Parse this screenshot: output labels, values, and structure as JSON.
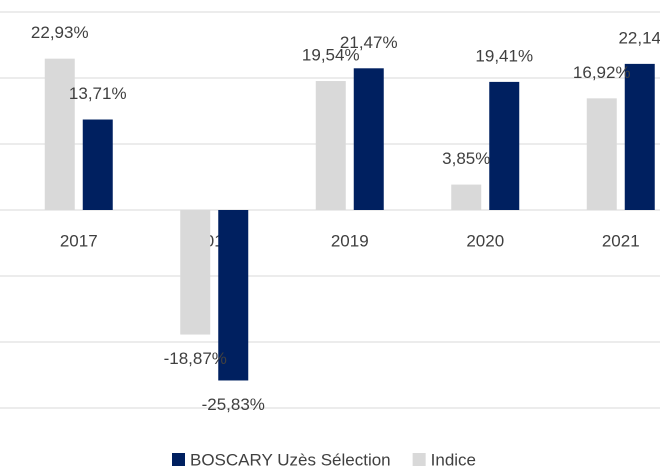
{
  "chart_data": {
    "type": "bar",
    "categories": [
      "2017",
      "2018",
      "2019",
      "2020",
      "2021"
    ],
    "series": [
      {
        "name": "BOSCARY Uzès Sélection",
        "color": "#002060",
        "values": [
          13.71,
          -25.83,
          21.47,
          19.41,
          22.14
        ],
        "value_labels": [
          "13,71%",
          "-25,83%",
          "21,47%",
          "19,41%",
          "22,14"
        ]
      },
      {
        "name": "Indice",
        "color": "#d9d9d9",
        "values": [
          22.93,
          -18.87,
          19.54,
          3.85,
          16.92
        ],
        "value_labels": [
          "22,93%",
          "-18,87%",
          "19,54%",
          "3,85%",
          "16,92%"
        ]
      }
    ],
    "ylim": [
      -30,
      30
    ],
    "yticks": [
      -30,
      -20,
      -10,
      0,
      10,
      20,
      30
    ],
    "grid": true
  }
}
